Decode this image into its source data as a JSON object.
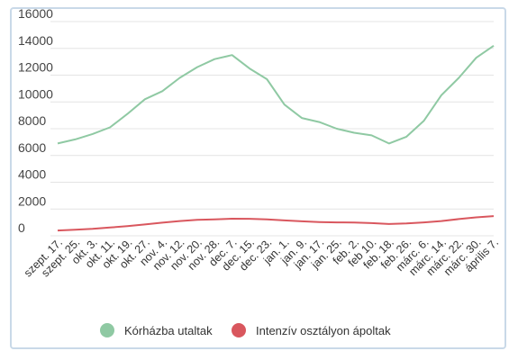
{
  "chart_data": {
    "type": "line",
    "ylim": [
      0,
      16000
    ],
    "yticks": [
      0,
      2000,
      4000,
      6000,
      8000,
      10000,
      12000,
      14000,
      16000
    ],
    "grid": "horizontal",
    "legend_position": "bottom",
    "categories": [
      "szept. 17.",
      "szept. 25.",
      "okt. 3.",
      "okt. 11.",
      "okt. 19.",
      "okt. 27.",
      "nov. 4.",
      "nov. 12.",
      "nov. 20.",
      "nov. 28.",
      "dec. 7.",
      "dec. 15.",
      "dec. 23.",
      "jan. 1.",
      "jan. 9.",
      "jan. 17.",
      "jan. 25.",
      "feb. 2.",
      "feb 10.",
      "feb. 18.",
      "feb. 26.",
      "márc. 6.",
      "márc. 14.",
      "márc. 22.",
      "márc. 30.",
      "április 7."
    ],
    "series": [
      {
        "name": "Kórházba utaltak",
        "color": "#8fc9a3",
        "values": [
          6900,
          7200,
          7600,
          8100,
          9100,
          10200,
          10800,
          11800,
          12600,
          13200,
          13500,
          12500,
          11700,
          9800,
          8800,
          8500,
          8000,
          7700,
          7500,
          6900,
          7400,
          8600,
          10500,
          11800,
          13300,
          14200
        ]
      },
      {
        "name": "Intenzív osztályon ápoltak",
        "color": "#d9575e",
        "values": [
          400,
          450,
          520,
          620,
          720,
          850,
          980,
          1100,
          1200,
          1230,
          1280,
          1270,
          1230,
          1150,
          1080,
          1030,
          1000,
          990,
          950,
          880,
          920,
          1000,
          1100,
          1250,
          1380,
          1470
        ]
      }
    ]
  },
  "legend": {
    "item1": "Kórházba utaltak",
    "item2": "Intenzív osztályon ápoltak"
  }
}
